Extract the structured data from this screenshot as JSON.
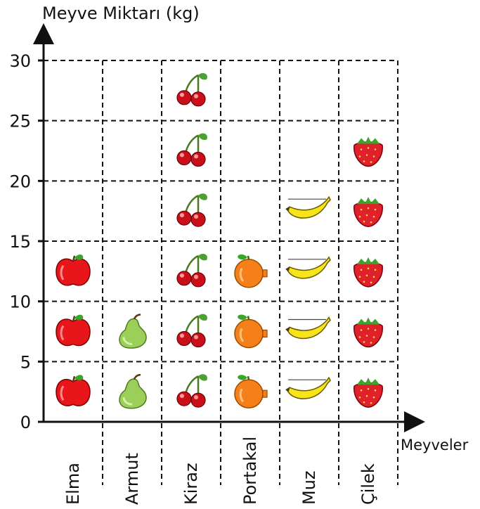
{
  "chart_data": {
    "type": "pictograph",
    "ylabel": "Meyve Miktarı (kg)",
    "xlabel": "Meyveler",
    "ylim": [
      0,
      30
    ],
    "yticks": [
      0,
      5,
      10,
      15,
      20,
      25,
      30
    ],
    "unit_per_icon": 5,
    "grid": "dashed",
    "categories": [
      {
        "label": "Elma",
        "icon": "apple-icon",
        "value": 15
      },
      {
        "label": "Armut",
        "icon": "pear-icon",
        "value": 10
      },
      {
        "label": "Kiraz",
        "icon": "cherry-icon",
        "value": 30
      },
      {
        "label": "Portakal",
        "icon": "orange-icon",
        "value": 15
      },
      {
        "label": "Muz",
        "icon": "banana-icon",
        "value": 20
      },
      {
        "label": "Çilek",
        "icon": "strawberry-icon",
        "value": 25
      }
    ]
  }
}
